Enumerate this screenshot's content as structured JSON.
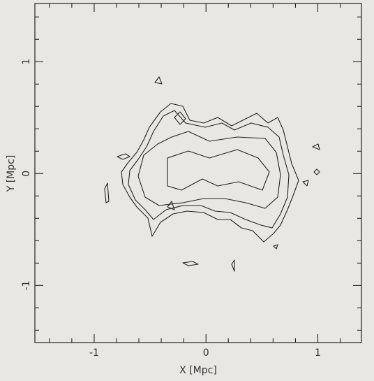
{
  "chart_data": {
    "type": "contour",
    "xlabel": "X [Mpc]",
    "ylabel": "Y [Mpc]",
    "xlim": [
      -1.53,
      1.39
    ],
    "ylim": [
      -1.51,
      1.52
    ],
    "xticks": [
      -1,
      0,
      1
    ],
    "yticks": [
      -1,
      0,
      1
    ],
    "xminorticks": [
      -1.4,
      -1.2,
      -0.8,
      -0.6,
      -0.4,
      -0.2,
      0.2,
      0.4,
      0.6,
      0.8,
      1.2
    ],
    "yminorticks": [
      -1.4,
      -1.2,
      -0.8,
      -0.6,
      -0.4,
      -0.2,
      0.2,
      0.4,
      0.6,
      0.8,
      1.2,
      1.4
    ],
    "color": "#222222"
  }
}
